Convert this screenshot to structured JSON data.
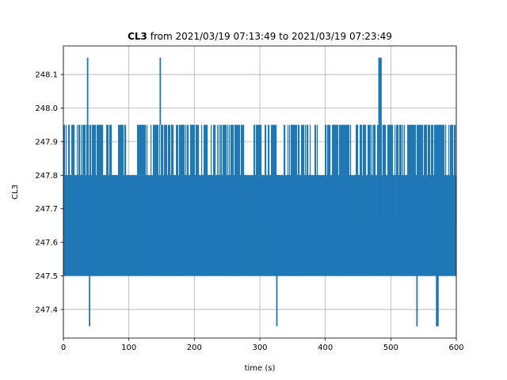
{
  "chart_data": {
    "type": "line",
    "title": {
      "bold": "CL3",
      "rest": " from 2021/03/19 07:13:49 to 2021/03/19 07:23:49"
    },
    "xlabel": "time (s)",
    "ylabel": "CL3",
    "xlim": [
      0,
      600
    ],
    "ylim": [
      247.315,
      248.185
    ],
    "xticks": [
      0,
      100,
      200,
      300,
      400,
      500,
      600
    ],
    "xtick_labels": [
      "0",
      "100",
      "200",
      "300",
      "400",
      "500",
      "600"
    ],
    "yticks": [
      247.4,
      247.5,
      247.6,
      247.7,
      247.8,
      247.9,
      248.0,
      248.1
    ],
    "ytick_labels": [
      "247.4",
      "247.5",
      "247.6",
      "247.7",
      "247.8",
      "247.9",
      "248.0",
      "248.1"
    ],
    "grid": true,
    "series": [
      {
        "color": "#1f77b4",
        "levels": [
          247.5,
          247.65,
          247.8,
          247.95
        ],
        "base_range": [
          247.5,
          247.95
        ],
        "dense_band": [
          247.5,
          247.8
        ],
        "excursions_to_247_95_from": [
          247.5,
          247.65,
          247.8
        ],
        "spikes_high": [
          {
            "x": 37,
            "y": 248.15
          },
          {
            "x": 148,
            "y": 248.15
          },
          {
            "x": 482,
            "y": 248.15
          },
          {
            "x": 483,
            "y": 248.15
          },
          {
            "x": 484,
            "y": 248.15
          },
          {
            "x": 485,
            "y": 248.15
          }
        ],
        "spikes_low": [
          {
            "x": 40,
            "y": 247.35
          },
          {
            "x": 326,
            "y": 247.35
          },
          {
            "x": 540,
            "y": 247.35
          },
          {
            "x": 570,
            "y": 247.35
          },
          {
            "x": 571,
            "y": 247.35
          },
          {
            "x": 572,
            "y": 247.35
          }
        ],
        "gaps_without_247_95": [
          [
            9,
            12
          ],
          [
            16,
            19
          ],
          [
            61,
            65
          ],
          [
            73,
            75
          ],
          [
            95,
            112
          ],
          [
            275,
            290
          ],
          [
            326,
            335
          ],
          [
            388,
            398
          ],
          [
            438,
            446
          ]
        ]
      }
    ]
  }
}
